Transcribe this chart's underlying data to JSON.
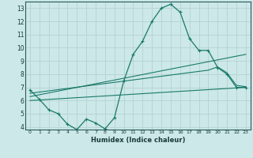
{
  "xlabel": "Humidex (Indice chaleur)",
  "bg_color": "#cce8e8",
  "grid_color": "#b8d4d4",
  "line_color": "#1a7a6a",
  "xlim": [
    -0.5,
    23.5
  ],
  "ylim": [
    3.8,
    13.5
  ],
  "yticks": [
    4,
    5,
    6,
    7,
    8,
    9,
    10,
    11,
    12,
    13
  ],
  "xticks": [
    0,
    1,
    2,
    3,
    4,
    5,
    6,
    7,
    8,
    9,
    10,
    11,
    12,
    13,
    14,
    15,
    16,
    17,
    18,
    19,
    20,
    21,
    22,
    23
  ],
  "line1_x": [
    0,
    1,
    2,
    3,
    4,
    5,
    6,
    7,
    8,
    9,
    10,
    11,
    12,
    13,
    14,
    15,
    16,
    17,
    18,
    19,
    20,
    21,
    22,
    23
  ],
  "line1_y": [
    6.8,
    6.1,
    5.3,
    5.0,
    4.2,
    3.8,
    4.6,
    4.3,
    3.85,
    4.7,
    7.5,
    9.5,
    10.5,
    12.0,
    13.0,
    13.3,
    12.7,
    10.7,
    9.8,
    9.8,
    8.5,
    8.0,
    7.0,
    7.0
  ],
  "line2_x": [
    0,
    23
  ],
  "line2_y": [
    6.0,
    7.0
  ],
  "line3_x": [
    0,
    23
  ],
  "line3_y": [
    6.3,
    9.5
  ],
  "line4_x": [
    0,
    19,
    20,
    21,
    22,
    23
  ],
  "line4_y": [
    6.55,
    8.3,
    8.55,
    8.1,
    7.15,
    7.05
  ]
}
